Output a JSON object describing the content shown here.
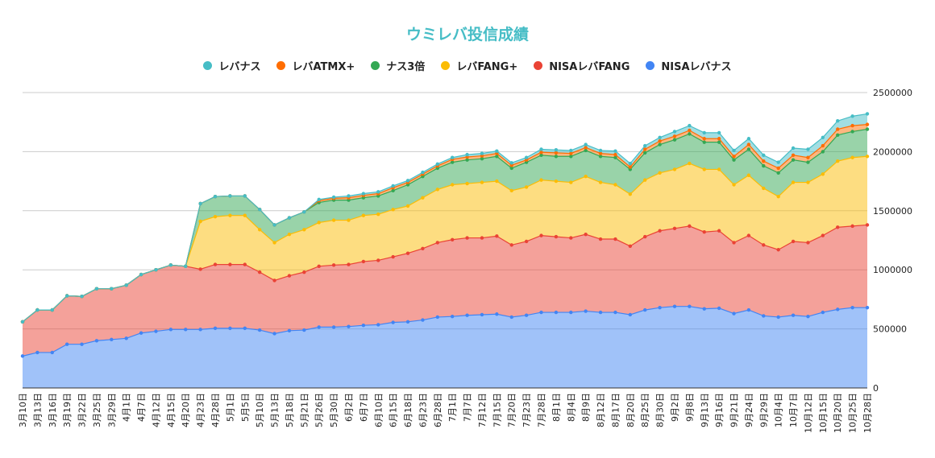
{
  "chart_data": {
    "type": "area",
    "stacked": true,
    "title": "ウミレバ投信成績",
    "legend_position": "top",
    "grid": true,
    "ylim": [
      0,
      2500000
    ],
    "y_ticks": [
      "0",
      "500000",
      "1000000",
      "1500000",
      "2000000",
      "2500000"
    ],
    "y_axis_side": "right",
    "categories": [
      "3月10日",
      "3月13日",
      "3月16日",
      "3月19日",
      "3月22日",
      "3月25日",
      "3月29日",
      "4月1日",
      "4月7日",
      "4月12日",
      "4月15日",
      "4月20日",
      "4月23日",
      "4月28日",
      "5月1日",
      "5月5日",
      "5月10日",
      "5月13日",
      "5月18日",
      "5月21日",
      "5月26日",
      "5月30日",
      "6月2日",
      "6月7日",
      "6月10日",
      "6月15日",
      "6月18日",
      "6月23日",
      "6月28日",
      "7月1日",
      "7月7日",
      "7月12日",
      "7月15日",
      "7月20日",
      "7月23日",
      "7月28日",
      "8月1日",
      "8月4日",
      "8月9日",
      "8月12日",
      "8月17日",
      "8月20日",
      "8月25日",
      "8月30日",
      "9月2日",
      "9月8日",
      "9月13日",
      "9月16日",
      "9月21日",
      "9月24日",
      "9月29日",
      "10月4日",
      "10月7日",
      "10月12日",
      "10月15日",
      "10月20日",
      "10月25日",
      "10月28日"
    ],
    "series": [
      {
        "name": "NISAレバナス",
        "color": "#4285f4",
        "values": [
          270000,
          300000,
          300000,
          370000,
          370000,
          400000,
          410000,
          420000,
          465000,
          480000,
          495000,
          495000,
          495000,
          505000,
          505000,
          505000,
          490000,
          460000,
          485000,
          490000,
          515000,
          515000,
          520000,
          530000,
          535000,
          555000,
          560000,
          575000,
          600000,
          605000,
          615000,
          620000,
          625000,
          600000,
          615000,
          640000,
          640000,
          640000,
          650000,
          640000,
          640000,
          620000,
          660000,
          680000,
          690000,
          690000,
          670000,
          675000,
          630000,
          660000,
          610000,
          600000,
          615000,
          605000,
          640000,
          665000,
          680000,
          680000
        ]
      },
      {
        "name": "NISAレバFANG",
        "color": "#ea4335",
        "values": [
          290000,
          360000,
          360000,
          410000,
          405000,
          440000,
          430000,
          450000,
          495000,
          520000,
          545000,
          535000,
          510000,
          540000,
          540000,
          540000,
          490000,
          450000,
          465000,
          490000,
          515000,
          525000,
          525000,
          540000,
          545000,
          555000,
          580000,
          605000,
          630000,
          650000,
          655000,
          650000,
          660000,
          610000,
          625000,
          650000,
          640000,
          630000,
          650000,
          620000,
          620000,
          580000,
          620000,
          650000,
          660000,
          680000,
          650000,
          655000,
          600000,
          630000,
          600000,
          570000,
          625000,
          625000,
          650000,
          695000,
          690000,
          700000
        ]
      },
      {
        "name": "レバFANG+",
        "color": "#fbbc04",
        "values": [
          0,
          0,
          0,
          0,
          0,
          0,
          0,
          0,
          0,
          0,
          0,
          0,
          405000,
          405000,
          415000,
          415000,
          360000,
          320000,
          350000,
          360000,
          370000,
          380000,
          375000,
          390000,
          390000,
          400000,
          400000,
          430000,
          450000,
          465000,
          460000,
          470000,
          465000,
          460000,
          460000,
          470000,
          470000,
          470000,
          490000,
          480000,
          460000,
          440000,
          480000,
          490000,
          500000,
          530000,
          530000,
          520000,
          490000,
          510000,
          480000,
          450000,
          500000,
          510000,
          520000,
          560000,
          580000,
          580000
        ]
      },
      {
        "name": "ナス3倍",
        "color": "#34a853",
        "values": [
          0,
          0,
          0,
          0,
          0,
          0,
          0,
          0,
          0,
          0,
          0,
          0,
          150000,
          170000,
          165000,
          165000,
          170000,
          150000,
          140000,
          150000,
          170000,
          170000,
          170000,
          150000,
          155000,
          160000,
          180000,
          180000,
          180000,
          190000,
          200000,
          200000,
          210000,
          190000,
          210000,
          210000,
          210000,
          220000,
          220000,
          220000,
          230000,
          210000,
          230000,
          240000,
          250000,
          250000,
          230000,
          230000,
          210000,
          220000,
          190000,
          200000,
          190000,
          170000,
          190000,
          220000,
          220000,
          230000
        ]
      },
      {
        "name": "レバATMX+",
        "color": "#ff6d01",
        "values": [
          0,
          0,
          0,
          0,
          0,
          0,
          0,
          0,
          0,
          0,
          0,
          0,
          0,
          0,
          0,
          0,
          0,
          0,
          0,
          0,
          15000,
          15000,
          20000,
          20000,
          20000,
          25000,
          20000,
          20000,
          20000,
          25000,
          25000,
          25000,
          25000,
          25000,
          20000,
          25000,
          30000,
          25000,
          25000,
          25000,
          25000,
          20000,
          30000,
          30000,
          30000,
          30000,
          30000,
          30000,
          30000,
          40000,
          40000,
          40000,
          40000,
          40000,
          50000,
          50000,
          50000,
          40000
        ]
      },
      {
        "name": "レバナス",
        "color": "#46bdc6",
        "values": [
          0,
          0,
          0,
          0,
          0,
          0,
          0,
          0,
          0,
          0,
          0,
          0,
          0,
          0,
          0,
          0,
          0,
          0,
          0,
          0,
          10000,
          10000,
          15000,
          15000,
          15000,
          15000,
          15000,
          15000,
          15000,
          15000,
          20000,
          20000,
          20000,
          20000,
          20000,
          25000,
          25000,
          25000,
          25000,
          25000,
          30000,
          30000,
          30000,
          30000,
          40000,
          40000,
          50000,
          50000,
          50000,
          50000,
          50000,
          50000,
          60000,
          70000,
          70000,
          70000,
          80000,
          90000
        ]
      }
    ],
    "legend_order": [
      "レバナス",
      "レバATMX+",
      "ナス3倍",
      "レバFANG+",
      "NISAレバFANG",
      "NISAレバナス"
    ]
  }
}
